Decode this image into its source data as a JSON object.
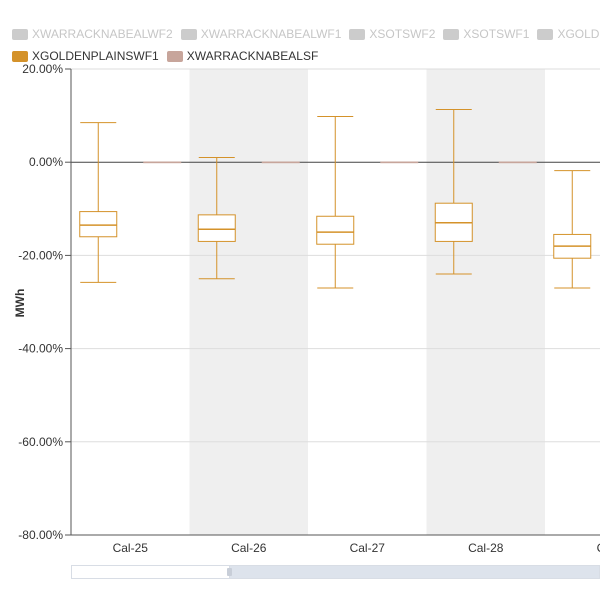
{
  "legend": {
    "row1": [
      {
        "name": "XWARRACKNABEALWF2",
        "color": "#cccccc",
        "visible": false
      },
      {
        "name": "XWARRACKNABEALWF1",
        "color": "#cccccc",
        "visible": false
      },
      {
        "name": "XSOTSWF2",
        "color": "#cccccc",
        "visible": false
      },
      {
        "name": "XSOTSWF1",
        "color": "#cccccc",
        "visible": false
      },
      {
        "name": "XGOLD",
        "color": "#cccccc",
        "visible": false
      }
    ],
    "row2": [
      {
        "name": "XGOLDENPLAINSWF1",
        "color": "#d4922a",
        "visible": true
      },
      {
        "name": "XWARRACKNABEALSF",
        "color": "#c7a59b",
        "visible": true
      }
    ]
  },
  "chart_data": {
    "type": "boxplot",
    "title": "",
    "xlabel": "",
    "ylabel": "MWh",
    "ylim": [
      -80,
      20
    ],
    "yticks": [
      20,
      0,
      -20,
      -40,
      -60,
      -80
    ],
    "ytick_labels": [
      "20.00%",
      "0.00%",
      "-20.00%",
      "-40.00%",
      "-60.00%",
      "-80.00%"
    ],
    "categories": [
      "Cal-25",
      "Cal-26",
      "Cal-27",
      "Cal-28",
      "Ca"
    ],
    "series": [
      {
        "name": "XGOLDENPLAINSWF1",
        "color": "#d4922a",
        "boxes": [
          {
            "low": -25.8,
            "q1": -16.0,
            "median": -13.5,
            "q3": -10.6,
            "high": 8.5
          },
          {
            "low": -25.0,
            "q1": -17.0,
            "median": -14.4,
            "q3": -11.3,
            "high": 1.0
          },
          {
            "low": -27.0,
            "q1": -17.6,
            "median": -15.0,
            "q3": -11.6,
            "high": 9.8
          },
          {
            "low": -24.0,
            "q1": -17.0,
            "median": -13.0,
            "q3": -8.8,
            "high": 11.3
          },
          {
            "low": -27.0,
            "q1": -20.6,
            "median": -18.0,
            "q3": -15.5,
            "high": -1.8
          }
        ]
      },
      {
        "name": "XWARRACKNABEALSF",
        "color": "#c7a59b",
        "boxes": [
          {
            "low": 0,
            "q1": 0,
            "median": 0,
            "q3": 0,
            "high": 0
          },
          {
            "low": 0,
            "q1": 0,
            "median": 0,
            "q3": 0,
            "high": 0
          },
          {
            "low": 0,
            "q1": 0,
            "median": 0,
            "q3": 0,
            "high": 0
          },
          {
            "low": 0,
            "q1": 0,
            "median": 0,
            "q3": 0,
            "high": 0
          },
          {
            "low": 0,
            "q1": 0,
            "median": 0,
            "q3": 0,
            "high": 0
          }
        ]
      }
    ],
    "grid": true,
    "alternate_band_color": "#efefef"
  },
  "navigator": {
    "window_start": 0,
    "window_end": 0.3
  }
}
